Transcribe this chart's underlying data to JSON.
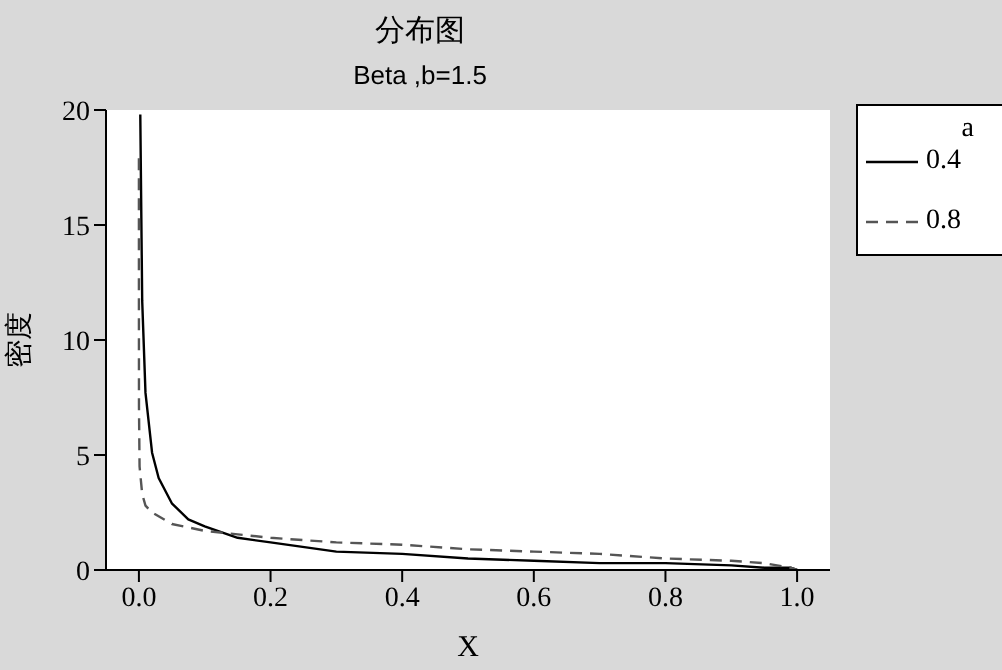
{
  "chart_data": {
    "type": "line",
    "title": "分布图",
    "subtitle": "Beta ,b=1.5",
    "xlabel": "X",
    "ylabel": "密度",
    "legend_title": "a",
    "legend": "right",
    "grid": false,
    "marker": "none",
    "xlim": [
      -0.05,
      1.05
    ],
    "xticks": [
      {
        "value": 0,
        "label": "0.0"
      },
      {
        "value": 0.2,
        "label": "0.2"
      },
      {
        "value": 0.4,
        "label": "0.4"
      },
      {
        "value": 0.6,
        "label": "0.6"
      },
      {
        "value": 0.8,
        "label": "0.8"
      },
      {
        "value": 1,
        "label": "1.0"
      }
    ],
    "ylim": [
      0,
      20
    ],
    "yticks": [
      0,
      5,
      10,
      15,
      20
    ],
    "series": [
      {
        "name": "0.4",
        "color": "#000000",
        "line_style": "solid",
        "x": [
          0.0021,
          0.005,
          0.01,
          0.02,
          0.03,
          0.05,
          0.075,
          0.1,
          0.15,
          0.2,
          0.3,
          0.4,
          0.5,
          0.6,
          0.7,
          0.8,
          0.9,
          0.95,
          0.99,
          1.0
        ],
        "values": [
          19.8,
          11.7,
          7.7,
          5.1,
          4.0,
          2.9,
          2.2,
          1.9,
          1.4,
          1.2,
          0.8,
          0.7,
          0.5,
          0.4,
          0.3,
          0.3,
          0.2,
          0.1,
          0.1,
          0
        ]
      },
      {
        "name": "0.8",
        "color": "#555555",
        "line_style": "dashed",
        "x": [
          1e-06,
          1e-05,
          0.0001,
          0.001,
          0.005,
          0.01,
          0.02,
          0.05,
          0.1,
          0.2,
          0.3,
          0.4,
          0.5,
          0.6,
          0.7,
          0.8,
          0.9,
          0.95,
          0.99,
          1.0
        ],
        "values": [
          17.9,
          11.3,
          7.1,
          4.5,
          3.3,
          2.8,
          2.5,
          2.0,
          1.7,
          1.4,
          1.2,
          1.1,
          0.9,
          0.8,
          0.7,
          0.5,
          0.4,
          0.3,
          0.1,
          0
        ]
      }
    ]
  }
}
